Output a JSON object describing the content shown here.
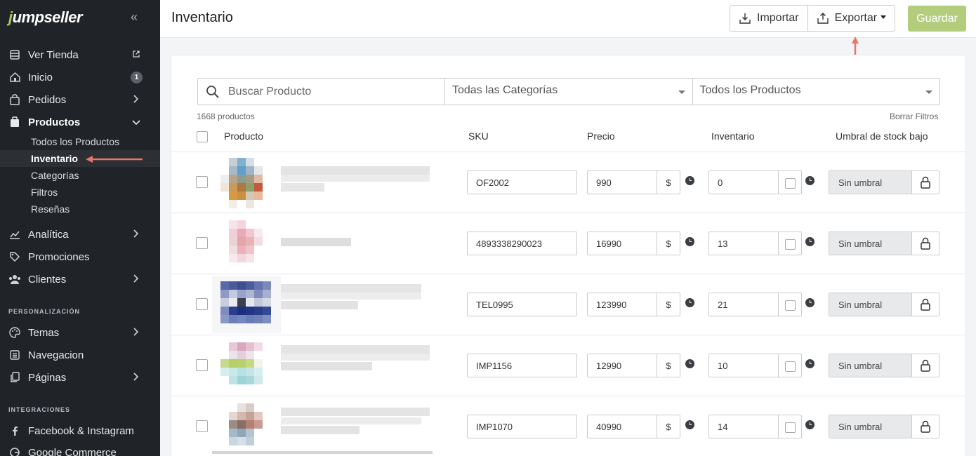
{
  "sidebar": {
    "logo": "jumpseller",
    "items": [
      {
        "label": "Ver Tienda"
      },
      {
        "label": "Inicio",
        "badge": "1"
      },
      {
        "label": "Pedidos"
      },
      {
        "label": "Productos"
      },
      {
        "label": "Analítica"
      },
      {
        "label": "Promociones"
      },
      {
        "label": "Clientes"
      },
      {
        "label": "Temas"
      },
      {
        "label": "Navegacion"
      },
      {
        "label": "Páginas"
      },
      {
        "label": "Facebook & Instagram"
      },
      {
        "label": "Google Commerce"
      }
    ],
    "sub_items": [
      {
        "label": "Todos los Productos"
      },
      {
        "label": "Inventario"
      },
      {
        "label": "Categorías"
      },
      {
        "label": "Filtros"
      },
      {
        "label": "Reseñas"
      }
    ],
    "sections": {
      "personalizacion": "PERSONALIZACIÓN",
      "integraciones": "INTEGRACIONES"
    }
  },
  "header": {
    "title": "Inventario",
    "import_label": "Importar",
    "export_label": "Exportar",
    "save_label": "Guardar"
  },
  "filters": {
    "search_placeholder": "Buscar Producto",
    "category": "Todas las Categorías",
    "products": "Todos los Productos",
    "count": "1668 productos",
    "clear": "Borrar Filtros"
  },
  "table": {
    "headers": {
      "product": "Producto",
      "sku": "SKU",
      "price": "Precio",
      "inventory": "Inventario",
      "threshold": "Umbral de stock bajo"
    },
    "currency": "$",
    "threshold_value": "Sin umbral",
    "rows": [
      {
        "sku": "OF2002",
        "price": "990",
        "stock": "0"
      },
      {
        "sku": "4893338290023",
        "price": "16990",
        "stock": "13"
      },
      {
        "sku": "TEL0995",
        "price": "123990",
        "stock": "21"
      },
      {
        "sku": "IMP1156",
        "price": "12990",
        "stock": "10"
      },
      {
        "sku": "IMP1070",
        "price": "40990",
        "stock": "14"
      }
    ]
  },
  "colors": {
    "sidebar_bg": "#202327",
    "accent": "#a7c957",
    "save_button": "#b4cd7d",
    "annotation_arrow": "#e8756a"
  }
}
